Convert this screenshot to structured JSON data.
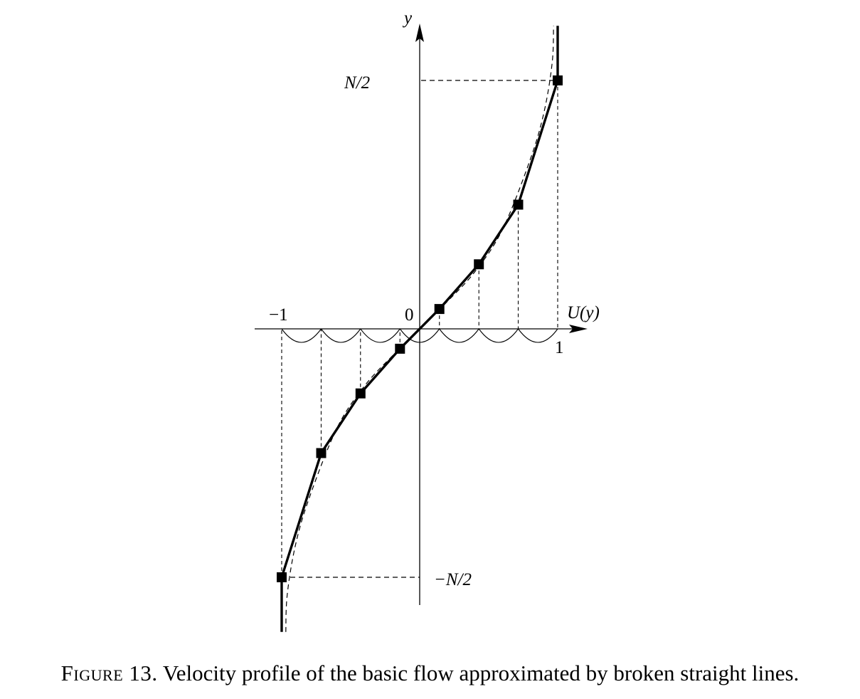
{
  "figure": {
    "caption_label": "Figure 13.",
    "caption_text": "Velocity profile of the basic flow approximated by broken straight lines.",
    "labels": {
      "y_axis": "y",
      "x_axis": "U(y)",
      "x_tick_minus_one": "−1",
      "x_tick_zero": "0",
      "x_tick_one": "1",
      "y_tick_top": "N/2",
      "y_tick_bottom": "−N/2"
    },
    "colors": {
      "ink": "#000000",
      "background": "#ffffff"
    }
  },
  "chart_data": {
    "type": "line",
    "xlim": [
      -1,
      1
    ],
    "x_ticks": [
      "−1",
      "0",
      "1"
    ],
    "y_ticks": [
      "N/2",
      "−N/2"
    ],
    "series": [
      {
        "style": "solid-broken",
        "markers": "square",
        "points": [
          {
            "U": -1.0,
            "y": -1.0
          },
          {
            "U": -0.714,
            "y": -0.5
          },
          {
            "U": -0.429,
            "y": -0.26
          },
          {
            "U": -0.143,
            "y": -0.08
          },
          {
            "U": 0.143,
            "y": 0.08
          },
          {
            "U": 0.429,
            "y": 0.26
          },
          {
            "U": 0.714,
            "y": 0.5
          },
          {
            "U": 1.0,
            "y": 1.0
          }
        ],
        "extensions": [
          {
            "U": -1.0,
            "y": -1.22
          },
          {
            "U": 1.0,
            "y": 1.22
          }
        ]
      },
      {
        "style": "dashed-smooth",
        "points": [
          {
            "U": -0.97,
            "y": -1.22
          },
          {
            "U": -0.96,
            "y": -1.07
          },
          {
            "U": -0.9,
            "y": -0.87
          },
          {
            "U": -0.8,
            "y": -0.68
          },
          {
            "U": -0.6,
            "y": -0.4
          },
          {
            "U": -0.4,
            "y": -0.23
          },
          {
            "U": -0.2,
            "y": -0.11
          },
          {
            "U": 0.0,
            "y": 0.0
          },
          {
            "U": 0.2,
            "y": 0.11
          },
          {
            "U": 0.4,
            "y": 0.23
          },
          {
            "U": 0.6,
            "y": 0.4
          },
          {
            "U": 0.8,
            "y": 0.68
          },
          {
            "U": 0.9,
            "y": 0.87
          },
          {
            "U": 0.96,
            "y": 1.07
          },
          {
            "U": 0.97,
            "y": 1.22
          }
        ]
      }
    ],
    "y_scale_note": "y in units of N/2",
    "grid": false,
    "legend": "none"
  }
}
